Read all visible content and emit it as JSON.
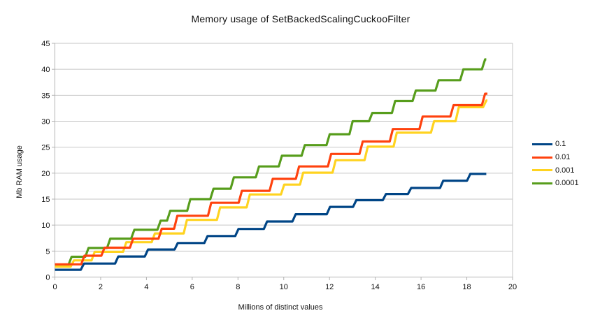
{
  "chart_data": {
    "type": "line",
    "subtype": "step",
    "title": "Memory usage of SetBackedScalingCuckooFilter",
    "xlabel": "Millions of distinct values",
    "ylabel": "Mb RAM usage",
    "xlim": [
      0,
      20
    ],
    "ylim": [
      0,
      45
    ],
    "x_tick_interval": 2,
    "y_tick_interval": 5,
    "grid": "horizontal",
    "legend_position": "right",
    "axis_color": "#b3b3b3",
    "grid_color": "#c6c6c6",
    "text_color": "#111111",
    "series": [
      {
        "name": "0.1",
        "color": "#004586",
        "end_x": 18.85,
        "steps": [
          [
            0,
            1.4
          ],
          [
            1.2,
            2.6
          ],
          [
            2.7,
            3.95
          ],
          [
            4.0,
            5.3
          ],
          [
            5.3,
            6.55
          ],
          [
            6.6,
            7.9
          ],
          [
            7.95,
            9.25
          ],
          [
            9.2,
            10.7
          ],
          [
            10.45,
            12.1
          ],
          [
            11.95,
            13.5
          ],
          [
            13.1,
            14.8
          ],
          [
            14.4,
            16.0
          ],
          [
            15.5,
            17.15
          ],
          [
            16.9,
            18.55
          ],
          [
            18.08,
            19.85
          ]
        ]
      },
      {
        "name": "0.01",
        "color": "#FF420E",
        "end_x": 18.9,
        "steps": [
          [
            0,
            2.45
          ],
          [
            1.22,
            4.1
          ],
          [
            2.1,
            5.65
          ],
          [
            3.35,
            7.4
          ],
          [
            4.6,
            9.3
          ],
          [
            5.28,
            11.8
          ],
          [
            6.76,
            14.3
          ],
          [
            8.1,
            16.6
          ],
          [
            9.45,
            18.9
          ],
          [
            10.6,
            21.3
          ],
          [
            12.0,
            23.7
          ],
          [
            13.38,
            26.1
          ],
          [
            14.7,
            28.5
          ],
          [
            16.0,
            30.9
          ],
          [
            17.35,
            33.1
          ],
          [
            18.73,
            35.3
          ]
        ]
      },
      {
        "name": "0.001",
        "color": "#FFD320",
        "end_x": 18.9,
        "steps": [
          [
            0,
            2.0
          ],
          [
            0.76,
            3.2
          ],
          [
            1.67,
            4.85
          ],
          [
            3.05,
            6.7
          ],
          [
            4.3,
            8.4
          ],
          [
            5.7,
            11.0
          ],
          [
            7.15,
            13.4
          ],
          [
            8.45,
            15.9
          ],
          [
            9.95,
            17.8
          ],
          [
            10.78,
            20.1
          ],
          [
            12.2,
            22.5
          ],
          [
            13.6,
            25.1
          ],
          [
            14.87,
            27.8
          ],
          [
            16.5,
            30.0
          ],
          [
            17.58,
            32.7
          ],
          [
            18.78,
            34.0
          ]
        ]
      },
      {
        "name": "0.0001",
        "color": "#579D1C",
        "end_x": 18.85,
        "steps": [
          [
            0,
            2.3
          ],
          [
            0.66,
            3.9
          ],
          [
            1.4,
            5.6
          ],
          [
            2.35,
            7.4
          ],
          [
            3.4,
            9.1
          ],
          [
            4.55,
            10.85
          ],
          [
            4.97,
            12.75
          ],
          [
            5.85,
            15.0
          ],
          [
            6.86,
            17.0
          ],
          [
            7.75,
            19.2
          ],
          [
            8.85,
            21.3
          ],
          [
            9.85,
            23.35
          ],
          [
            10.85,
            25.4
          ],
          [
            11.94,
            27.5
          ],
          [
            12.94,
            30.0
          ],
          [
            13.8,
            31.6
          ],
          [
            14.8,
            33.9
          ],
          [
            15.7,
            35.9
          ],
          [
            16.7,
            37.9
          ],
          [
            17.78,
            40.0
          ],
          [
            18.73,
            41.9
          ]
        ]
      }
    ]
  }
}
